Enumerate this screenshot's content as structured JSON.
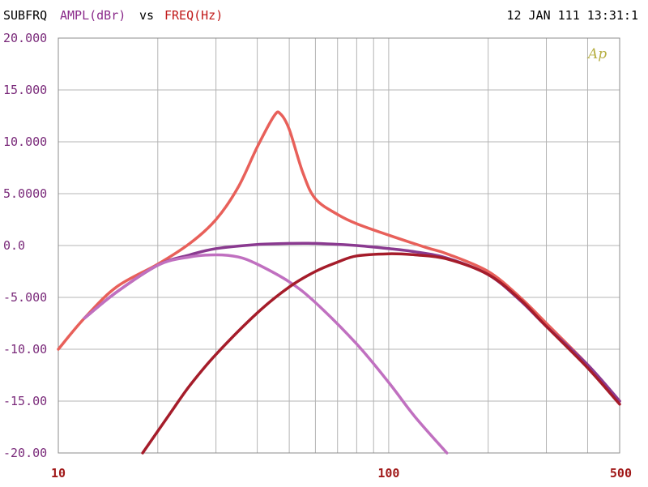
{
  "header": {
    "measurement": "SUBFRQ",
    "ylabel": "AMPL(dBr)",
    "vs": "vs",
    "xlabel": "FREQ(Hz)",
    "timestamp": "12 JAN 111 13:31:1"
  },
  "logo": "Ap",
  "colors": {
    "header_text": "#000000",
    "ylabel": "#8a2a8a",
    "xlabel": "#c01818",
    "grid": "#b4b4b4"
  },
  "chart_data": {
    "type": "line",
    "title": "",
    "xlabel": "FREQ(Hz)",
    "ylabel": "AMPL(dBr)",
    "xscale": "log",
    "xlim": [
      10,
      500
    ],
    "ylim": [
      -20,
      20
    ],
    "grid": true,
    "x_ticks": [
      "10",
      "100",
      "500"
    ],
    "y_ticks": [
      "20.000",
      "15.000",
      "10.000",
      "5.0000",
      "0.0",
      "-5.000",
      "-10.00",
      "-15.00",
      "-20.00"
    ],
    "series": [
      {
        "color": "#e8605a",
        "points": [
          [
            10,
            -10.0
          ],
          [
            12,
            -7.0
          ],
          [
            15,
            -4.0
          ],
          [
            20,
            -1.8
          ],
          [
            25,
            0.2
          ],
          [
            30,
            2.5
          ],
          [
            35,
            5.6
          ],
          [
            40,
            9.5
          ],
          [
            45,
            12.5
          ],
          [
            47,
            12.7
          ],
          [
            50,
            11.2
          ],
          [
            55,
            7.0
          ],
          [
            60,
            4.5
          ],
          [
            70,
            3.0
          ],
          [
            80,
            2.1
          ],
          [
            100,
            1.0
          ],
          [
            130,
            -0.2
          ],
          [
            150,
            -0.8
          ],
          [
            200,
            -2.5
          ],
          [
            250,
            -5.0
          ],
          [
            300,
            -7.5
          ],
          [
            400,
            -11.5
          ],
          [
            500,
            -15.0
          ]
        ]
      },
      {
        "color": "#8a3a90",
        "points": [
          [
            12,
            -7.0
          ],
          [
            15,
            -4.5
          ],
          [
            20,
            -1.9
          ],
          [
            25,
            -0.9
          ],
          [
            30,
            -0.3
          ],
          [
            40,
            0.1
          ],
          [
            50,
            0.2
          ],
          [
            60,
            0.2
          ],
          [
            80,
            0.0
          ],
          [
            100,
            -0.3
          ],
          [
            120,
            -0.6
          ],
          [
            150,
            -1.2
          ],
          [
            200,
            -2.8
          ],
          [
            250,
            -5.3
          ],
          [
            300,
            -7.8
          ],
          [
            400,
            -11.5
          ],
          [
            500,
            -15.0
          ]
        ]
      },
      {
        "color": "#c070c0",
        "points": [
          [
            12,
            -7.0
          ],
          [
            15,
            -4.5
          ],
          [
            20,
            -1.9
          ],
          [
            25,
            -1.1
          ],
          [
            30,
            -0.9
          ],
          [
            35,
            -1.1
          ],
          [
            40,
            -1.8
          ],
          [
            50,
            -3.5
          ],
          [
            60,
            -5.5
          ],
          [
            80,
            -9.5
          ],
          [
            100,
            -13.2
          ],
          [
            120,
            -16.5
          ],
          [
            150,
            -20.0
          ]
        ]
      },
      {
        "color": "#a51c2a",
        "points": [
          [
            18,
            -20.0
          ],
          [
            22,
            -16.0
          ],
          [
            25,
            -13.5
          ],
          [
            30,
            -10.5
          ],
          [
            40,
            -6.5
          ],
          [
            50,
            -4.0
          ],
          [
            60,
            -2.5
          ],
          [
            70,
            -1.6
          ],
          [
            80,
            -1.0
          ],
          [
            100,
            -0.8
          ],
          [
            120,
            -0.9
          ],
          [
            150,
            -1.3
          ],
          [
            200,
            -2.8
          ],
          [
            250,
            -5.2
          ],
          [
            300,
            -7.8
          ],
          [
            400,
            -11.8
          ],
          [
            500,
            -15.3
          ]
        ]
      }
    ]
  }
}
